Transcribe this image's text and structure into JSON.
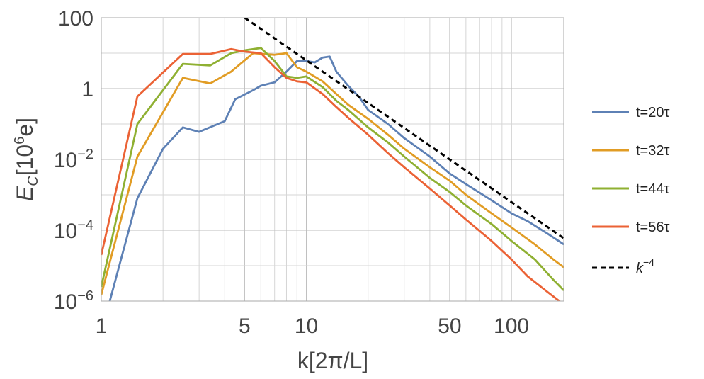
{
  "chart_data": {
    "type": "line",
    "x_scale": "log",
    "y_scale": "log",
    "xlim": [
      1,
      180
    ],
    "ylim": [
      1e-06,
      100
    ],
    "xlabel": "k[2π/L]",
    "ylabel": {
      "base": "E",
      "sub": "C",
      "bracket_open": "[10",
      "sup": "6",
      "unit": "e]"
    },
    "x_ticks": [
      {
        "value": 1,
        "label": "1"
      },
      {
        "value": 5,
        "label": "5"
      },
      {
        "value": 10,
        "label": "10"
      },
      {
        "value": 50,
        "label": "50"
      },
      {
        "value": 100,
        "label": "100"
      }
    ],
    "y_ticks": [
      {
        "value": 100,
        "base": "100",
        "sup": ""
      },
      {
        "value": 1,
        "base": "1",
        "sup": ""
      },
      {
        "value": 0.01,
        "base": "10",
        "sup": "−2"
      },
      {
        "value": 0.0001,
        "base": "10",
        "sup": "−4"
      },
      {
        "value": 1e-06,
        "base": "10",
        "sup": "−6"
      }
    ],
    "grid": true,
    "legend_position": "right",
    "series": [
      {
        "name": "t=20τ",
        "color": "#5e81b5",
        "points": [
          [
            1.1,
            1e-06
          ],
          [
            1.5,
            0.0008
          ],
          [
            2,
            0.02
          ],
          [
            2.5,
            0.08
          ],
          [
            3,
            0.06
          ],
          [
            4,
            0.12
          ],
          [
            4.5,
            0.5
          ],
          [
            5.5,
            0.9
          ],
          [
            6,
            1.2
          ],
          [
            7,
            1.5
          ],
          [
            8,
            3
          ],
          [
            9,
            6
          ],
          [
            10,
            6
          ],
          [
            11,
            5.5
          ],
          [
            12,
            7.5
          ],
          [
            13,
            8
          ],
          [
            14,
            3
          ],
          [
            16,
            1.2
          ],
          [
            18,
            0.6
          ],
          [
            20,
            0.25
          ],
          [
            25,
            0.1
          ],
          [
            30,
            0.04
          ],
          [
            40,
            0.012
          ],
          [
            50,
            0.004
          ],
          [
            60,
            0.002
          ],
          [
            80,
            0.0007
          ],
          [
            100,
            0.0003
          ],
          [
            120,
            0.00018
          ],
          [
            150,
            8e-05
          ],
          [
            180,
            4e-05
          ]
        ]
      },
      {
        "name": "t=32τ",
        "color": "#e19c24",
        "points": [
          [
            1,
            1.5e-06
          ],
          [
            1.5,
            0.012
          ],
          [
            2.5,
            2
          ],
          [
            3.4,
            1.4
          ],
          [
            4.3,
            3
          ],
          [
            5.5,
            10
          ],
          [
            7,
            9
          ],
          [
            8,
            10
          ],
          [
            9,
            4
          ],
          [
            10,
            3
          ],
          [
            12,
            1.6
          ],
          [
            14,
            0.7
          ],
          [
            16,
            0.35
          ],
          [
            20,
            0.14
          ],
          [
            25,
            0.05
          ],
          [
            30,
            0.02
          ],
          [
            40,
            0.006
          ],
          [
            50,
            0.0025
          ],
          [
            60,
            0.001
          ],
          [
            80,
            0.0003
          ],
          [
            100,
            0.00012
          ],
          [
            130,
            4e-05
          ],
          [
            160,
            1.5e-05
          ],
          [
            180,
            9e-06
          ]
        ]
      },
      {
        "name": "t=44τ",
        "color": "#8fb032",
        "points": [
          [
            1,
            2.5e-06
          ],
          [
            1.5,
            0.1
          ],
          [
            2.5,
            5
          ],
          [
            3.4,
            4.5
          ],
          [
            4.3,
            10
          ],
          [
            5,
            12
          ],
          [
            6,
            14
          ],
          [
            7,
            6
          ],
          [
            8,
            2.2
          ],
          [
            9,
            2
          ],
          [
            10,
            2.2
          ],
          [
            12,
            1.1
          ],
          [
            14,
            0.45
          ],
          [
            16,
            0.25
          ],
          [
            20,
            0.08
          ],
          [
            25,
            0.03
          ],
          [
            30,
            0.012
          ],
          [
            40,
            0.003
          ],
          [
            50,
            0.0012
          ],
          [
            60,
            0.0005
          ],
          [
            80,
            0.00015
          ],
          [
            100,
            5e-05
          ],
          [
            130,
            1.5e-05
          ],
          [
            160,
            4e-06
          ],
          [
            180,
            2e-06
          ]
        ]
      },
      {
        "name": "t=56τ",
        "color": "#eb6235",
        "points": [
          [
            1,
            2e-05
          ],
          [
            1.5,
            0.6
          ],
          [
            2.5,
            9.5
          ],
          [
            3.4,
            9.5
          ],
          [
            4.3,
            13
          ],
          [
            5,
            11
          ],
          [
            6,
            10
          ],
          [
            7,
            4
          ],
          [
            8,
            2
          ],
          [
            9,
            1.6
          ],
          [
            10,
            1.5
          ],
          [
            12,
            0.7
          ],
          [
            14,
            0.3
          ],
          [
            16,
            0.15
          ],
          [
            20,
            0.05
          ],
          [
            25,
            0.015
          ],
          [
            30,
            0.006
          ],
          [
            40,
            0.0015
          ],
          [
            50,
            0.0005
          ],
          [
            60,
            0.0002
          ],
          [
            80,
            5e-05
          ],
          [
            100,
            1.5e-05
          ],
          [
            120,
            5e-06
          ],
          [
            150,
            1.8e-06
          ],
          [
            180,
            8e-07
          ]
        ]
      },
      {
        "name": "k^-4",
        "color": "#000000",
        "dashed": true,
        "points": [
          [
            5,
            100
          ],
          [
            180,
            5.95e-05
          ]
        ]
      }
    ],
    "legend": [
      {
        "label": "t=20τ",
        "color": "#5e81b5",
        "dashed": false
      },
      {
        "label": "t=32τ",
        "color": "#e19c24",
        "dashed": false
      },
      {
        "label": "t=44τ",
        "color": "#8fb032",
        "dashed": false
      },
      {
        "label": "t=56τ",
        "color": "#eb6235",
        "dashed": false
      },
      {
        "label_base": "k",
        "label_sup": "−4",
        "color": "#000000",
        "dashed": true
      }
    ]
  }
}
